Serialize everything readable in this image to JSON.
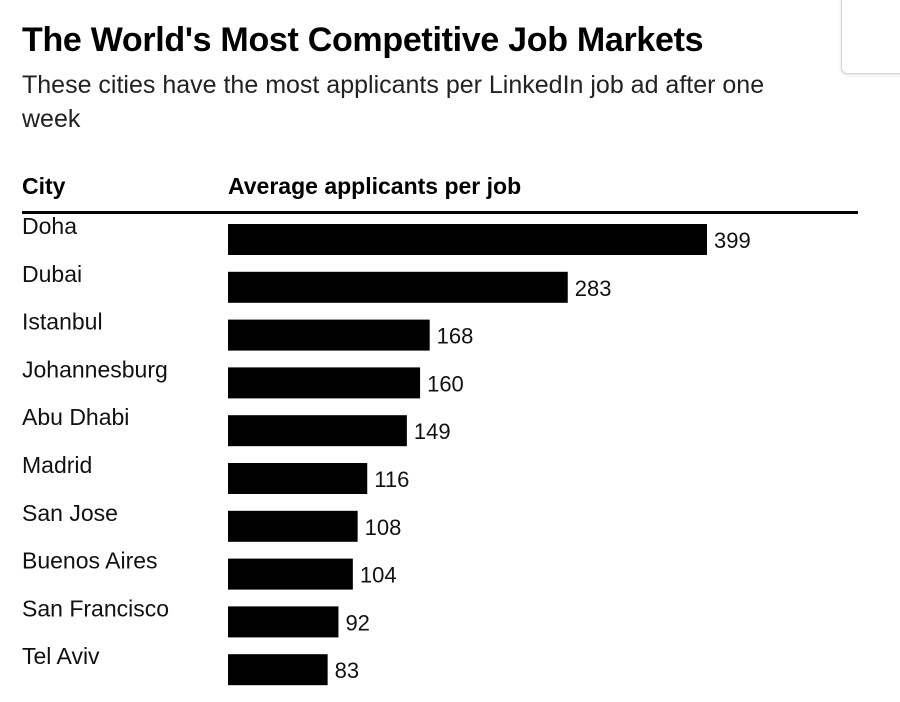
{
  "chart_data": {
    "type": "bar",
    "orientation": "horizontal",
    "title": "The World's Most Competitive Job Markets",
    "subtitle": "These cities have the most applicants per LinkedIn job ad after one week",
    "xlabel": "Average applicants per job",
    "ylabel": "City",
    "categories": [
      "Doha",
      "Dubai",
      "Istanbul",
      "Johannesburg",
      "Abu Dhabi",
      "Madrid",
      "San Jose",
      "Buenos Aires",
      "San Francisco",
      "Tel Aviv"
    ],
    "values": [
      399,
      283,
      168,
      160,
      149,
      116,
      108,
      104,
      92,
      83
    ],
    "xlim": [
      0,
      399
    ],
    "bar_color": "#000000",
    "grid": false
  }
}
